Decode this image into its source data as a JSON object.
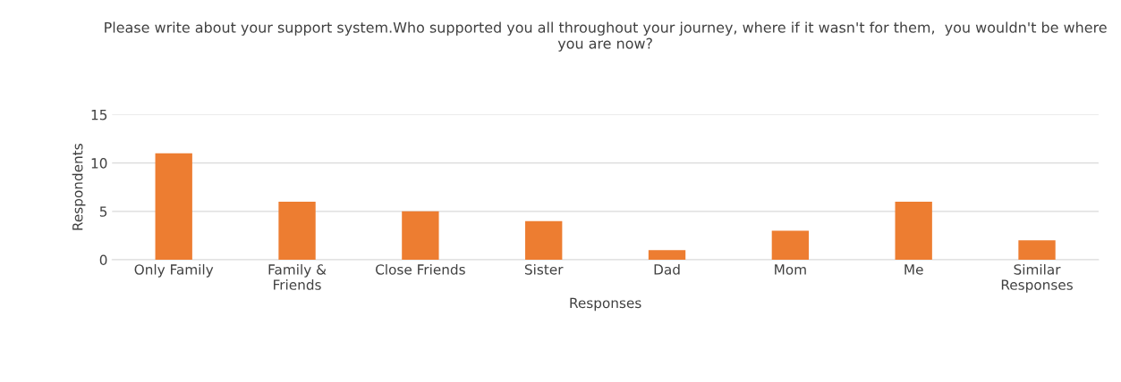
{
  "chart_data": {
    "type": "bar",
    "title": "Please write about your support system.Who supported you all throughout your journey, where if it wasn't for them,  you wouldn't be where you are now?",
    "xlabel": "Responses",
    "ylabel": "Respondents",
    "categories": [
      "Only Family",
      "Family &\nFriends",
      "Close Friends",
      "Sister",
      "Dad",
      "Mom",
      "Me",
      "Similar\nResponses"
    ],
    "values": [
      11,
      6,
      5,
      4,
      1,
      3,
      6,
      2
    ],
    "color": "#ed7d31",
    "ylim": [
      0,
      15
    ],
    "yticks": [
      0,
      5,
      10,
      15
    ],
    "grid": "y"
  }
}
